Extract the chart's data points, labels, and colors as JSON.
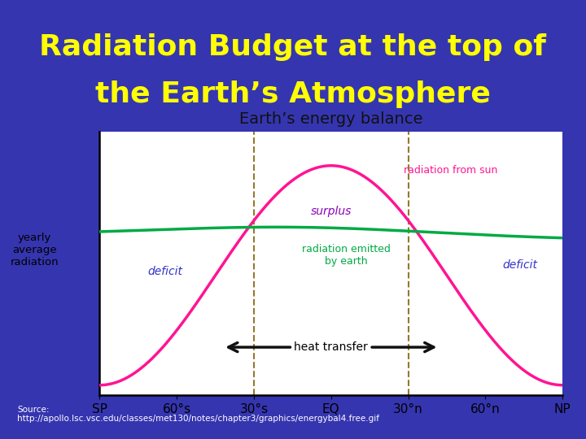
{
  "title_line1": "Radiation Budget at the top of",
  "title_line2": "the Earth’s Atmosphere",
  "title_color": "#FFFF00",
  "title_bg_color": "#7F7F7F",
  "background_color": "#3535B0",
  "chart_title": "Earth’s energy balance",
  "x_labels": [
    "SP",
    "60°s",
    "30°s",
    "EQ",
    "30°n",
    "60°n",
    "NP"
  ],
  "ylabel": "yearly\naverage\nradiation",
  "sun_color": "#FF1493",
  "earth_color": "#00AA44",
  "surplus_color": "#8800BB",
  "deficit_color": "#3333CC",
  "arrow_color": "#111111",
  "dashed_line_color": "#8B6914",
  "source_text": "Source:\nhttp://apollo.lsc.vsc.edu/classes/met130/notes/chapter3/graphics/energybal4.free.gif",
  "source_color": "#FFFFFF",
  "chart_title_color": "#111111"
}
